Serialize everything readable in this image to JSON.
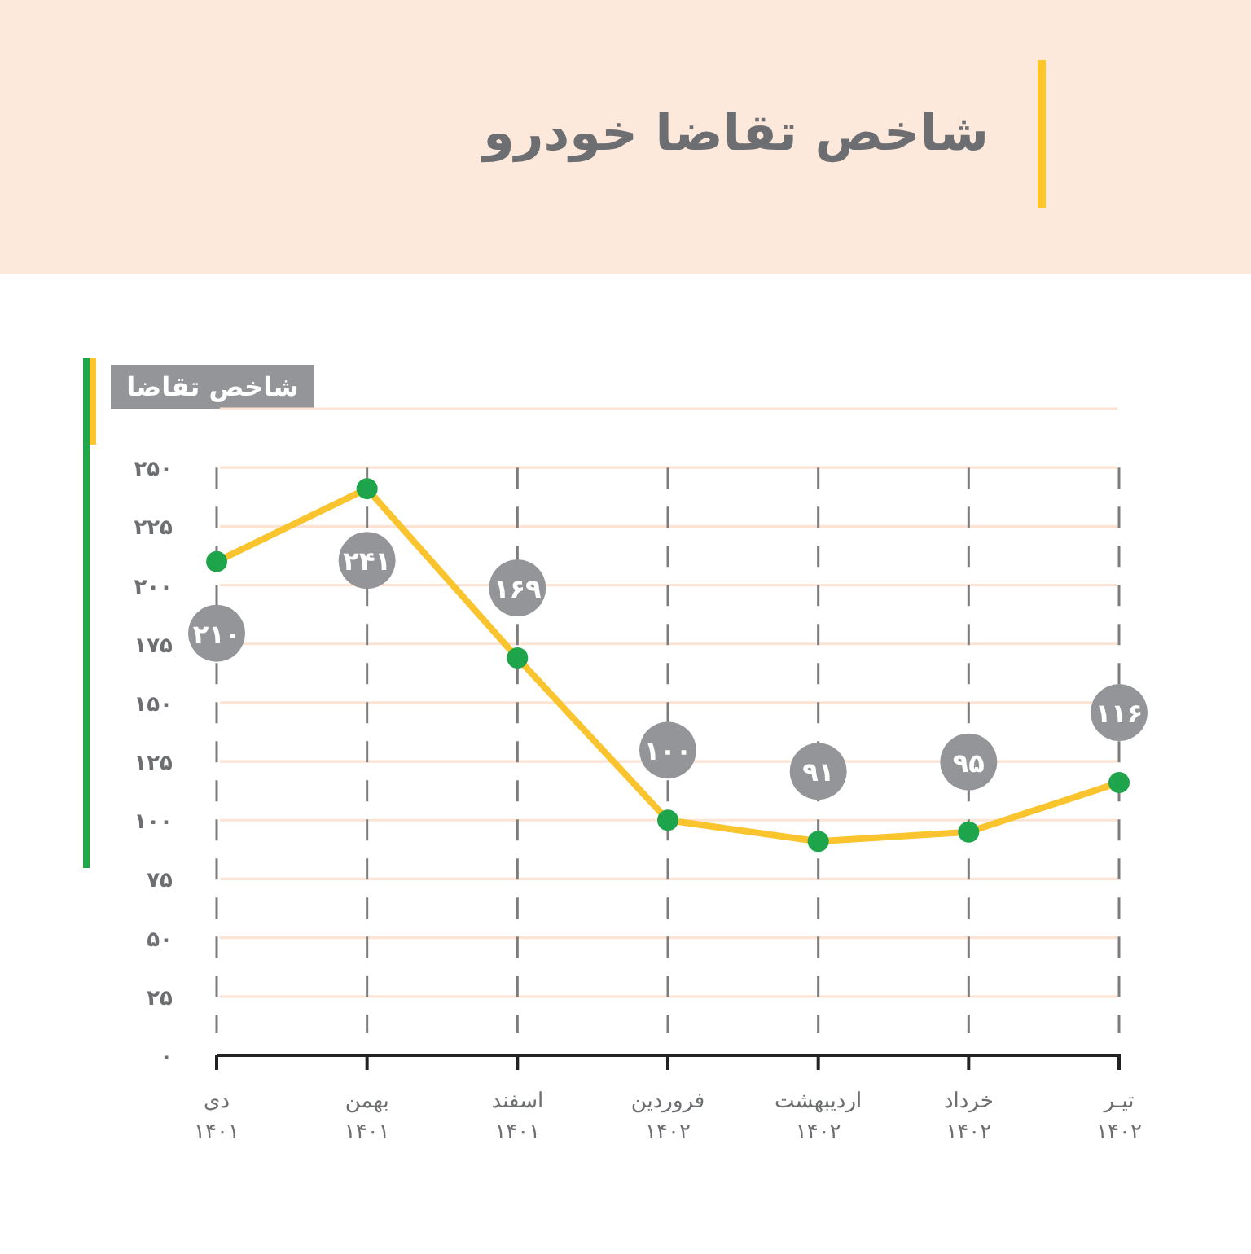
{
  "chart_data": {
    "type": "line",
    "title": "شاخص تقاضا خودرو",
    "ylabel": "شاخص تقاضا",
    "categories": [
      "دی\n۱۴۰۱",
      "بهمن\n۱۴۰۱",
      "اسفند\n۱۴۰۱",
      "فروردین\n۱۴۰۲",
      "اردیبهشت\n۱۴۰۲",
      "خرداد\n۱۴۰۲",
      "تیـر\n۱۴۰۲"
    ],
    "series": [
      {
        "color": "#f9c42d",
        "colors": [
          "#1ea54b",
          "#1ea54b",
          "#1ea54b",
          "#1ea54b",
          "#1ea54b",
          "#1ea54b",
          "#1ea54b"
        ],
        "values": [
          210,
          241,
          169,
          100,
          91,
          95,
          116
        ],
        "value_labels": [
          "۲۱۰",
          "۲۴۱",
          "۱۶۹",
          "۱۰۰",
          "۹۱",
          "۹۵",
          "۱۱۶"
        ]
      }
    ],
    "ylim": [
      0,
      275
    ],
    "yticks": [
      {
        "value": 0,
        "label": "۰"
      },
      {
        "value": 25,
        "label": "۲۵"
      },
      {
        "value": 50,
        "label": "۵۰"
      },
      {
        "value": 75,
        "label": "۷۵"
      },
      {
        "value": 100,
        "label": "۱۰۰"
      },
      {
        "value": 125,
        "label": "۱۲۵"
      },
      {
        "value": 150,
        "label": "۱۵۰"
      },
      {
        "value": 175,
        "label": "۱۷۵"
      },
      {
        "value": 200,
        "label": "۲۰۰"
      },
      {
        "value": 225,
        "label": "۲۲۵"
      },
      {
        "value": 250,
        "label": "۲۵۰"
      },
      {
        "value": 275,
        "label": null
      }
    ],
    "grid": true,
    "marker": "circle",
    "line_style": "solid"
  }
}
